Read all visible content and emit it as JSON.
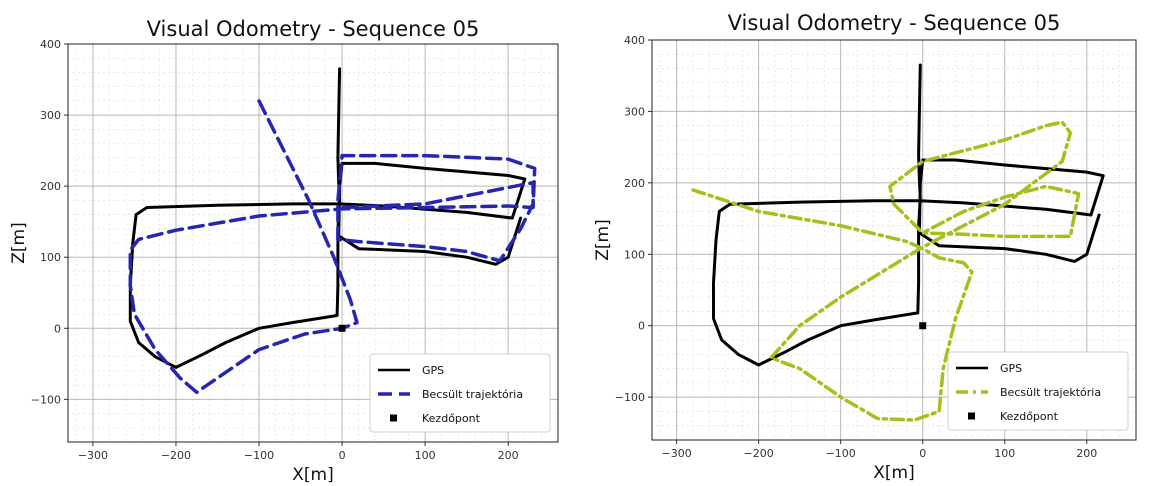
{
  "chart_data": [
    {
      "type": "line",
      "title": "Visual Odometry - Sequence 05",
      "xlabel": "X[m]",
      "ylabel": "Z[m]",
      "xlim": [
        -330,
        260
      ],
      "ylim": [
        -160,
        400
      ],
      "xticks": [
        -300,
        -200,
        -100,
        0,
        100,
        200
      ],
      "yticks": [
        -100,
        0,
        100,
        200,
        300,
        400
      ],
      "grid": true,
      "legend_position": "bottom-right",
      "series": [
        {
          "name": "GPS",
          "color": "#000000",
          "style": "solid",
          "points": [
            [
              -3,
              365
            ],
            [
              -4,
              300
            ],
            [
              -5,
              240
            ],
            [
              -4,
              205
            ],
            [
              -3,
              178
            ],
            [
              -5,
              140
            ],
            [
              -5,
              60
            ],
            [
              -6,
              18
            ],
            [
              -60,
              8
            ],
            [
              -100,
              0
            ],
            [
              -140,
              -20
            ],
            [
              -170,
              -38
            ],
            [
              -200,
              -55
            ],
            [
              -225,
              -40
            ],
            [
              -245,
              -20
            ],
            [
              -255,
              10
            ],
            [
              -255,
              60
            ],
            [
              -252,
              120
            ],
            [
              -248,
              160
            ],
            [
              -235,
              170
            ],
            [
              -150,
              173
            ],
            [
              -60,
              175
            ],
            [
              -3,
              175
            ],
            [
              50,
              172
            ],
            [
              150,
              163
            ],
            [
              205,
              155
            ],
            [
              220,
              210
            ],
            [
              200,
              215
            ],
            [
              100,
              225
            ],
            [
              40,
              232
            ],
            [
              0,
              232
            ],
            [
              -3,
              200
            ],
            [
              -4,
              130
            ],
            [
              20,
              112
            ],
            [
              100,
              108
            ],
            [
              150,
              100
            ],
            [
              185,
              90
            ],
            [
              200,
              100
            ],
            [
              215,
              155
            ]
          ]
        },
        {
          "name": "Becsült trajektória",
          "color": "#2626b0",
          "style": "dashed",
          "points": [
            [
              -100,
              320
            ],
            [
              -70,
              250
            ],
            [
              -40,
              180
            ],
            [
              -10,
              100
            ],
            [
              10,
              40
            ],
            [
              18,
              8
            ],
            [
              0,
              0
            ],
            [
              -45,
              -8
            ],
            [
              -100,
              -30
            ],
            [
              -150,
              -70
            ],
            [
              -175,
              -90
            ],
            [
              -195,
              -70
            ],
            [
              -225,
              -30
            ],
            [
              -250,
              20
            ],
            [
              -255,
              60
            ],
            [
              -255,
              110
            ],
            [
              -245,
              125
            ],
            [
              -200,
              138
            ],
            [
              -100,
              158
            ],
            [
              0,
              168
            ],
            [
              100,
              170
            ],
            [
              200,
              172
            ],
            [
              230,
              170
            ],
            [
              232,
              225
            ],
            [
              200,
              238
            ],
            [
              100,
              243
            ],
            [
              0,
              243
            ],
            [
              -5,
              180
            ],
            [
              -5,
              125
            ],
            [
              20,
              122
            ],
            [
              100,
              115
            ],
            [
              150,
              108
            ],
            [
              190,
              95
            ],
            [
              215,
              140
            ],
            [
              230,
              175
            ],
            [
              230,
              205
            ],
            [
              100,
              175
            ],
            [
              0,
              170
            ]
          ]
        }
      ],
      "markers": [
        {
          "name": "Kezdőpont",
          "color": "#000000",
          "x": 0,
          "y": 0
        }
      ]
    },
    {
      "type": "line",
      "title": "Visual Odometry - Sequence 05",
      "xlabel": "X[m]",
      "ylabel": "Z[m]",
      "xlim": [
        -330,
        260
      ],
      "ylim": [
        -160,
        400
      ],
      "xticks": [
        -300,
        -200,
        -100,
        0,
        100,
        200
      ],
      "yticks": [
        -100,
        0,
        100,
        200,
        300,
        400
      ],
      "grid": true,
      "legend_position": "bottom-right",
      "series": [
        {
          "name": "GPS",
          "color": "#000000",
          "style": "solid",
          "points": [
            [
              -3,
              365
            ],
            [
              -4,
              300
            ],
            [
              -5,
              240
            ],
            [
              -4,
              205
            ],
            [
              -3,
              178
            ],
            [
              -5,
              140
            ],
            [
              -5,
              60
            ],
            [
              -6,
              18
            ],
            [
              -60,
              8
            ],
            [
              -100,
              0
            ],
            [
              -140,
              -20
            ],
            [
              -170,
              -38
            ],
            [
              -200,
              -55
            ],
            [
              -225,
              -40
            ],
            [
              -245,
              -20
            ],
            [
              -255,
              10
            ],
            [
              -255,
              60
            ],
            [
              -252,
              120
            ],
            [
              -248,
              160
            ],
            [
              -235,
              170
            ],
            [
              -150,
              173
            ],
            [
              -60,
              175
            ],
            [
              -3,
              175
            ],
            [
              50,
              172
            ],
            [
              150,
              163
            ],
            [
              205,
              155
            ],
            [
              220,
              210
            ],
            [
              200,
              215
            ],
            [
              100,
              225
            ],
            [
              40,
              232
            ],
            [
              0,
              232
            ],
            [
              -3,
              200
            ],
            [
              -4,
              130
            ],
            [
              20,
              112
            ],
            [
              100,
              108
            ],
            [
              150,
              100
            ],
            [
              185,
              90
            ],
            [
              200,
              100
            ],
            [
              215,
              155
            ]
          ]
        },
        {
          "name": "Becsült trajektória",
          "color": "#a8be1c",
          "style": "dashdot",
          "points": [
            [
              -280,
              190
            ],
            [
              -200,
              160
            ],
            [
              -100,
              140
            ],
            [
              -20,
              118
            ],
            [
              0,
              108
            ],
            [
              20,
              95
            ],
            [
              50,
              88
            ],
            [
              60,
              75
            ],
            [
              40,
              10
            ],
            [
              25,
              -60
            ],
            [
              20,
              -120
            ],
            [
              -10,
              -132
            ],
            [
              -55,
              -130
            ],
            [
              -100,
              -100
            ],
            [
              -150,
              -60
            ],
            [
              -185,
              -45
            ],
            [
              -150,
              0
            ],
            [
              -100,
              40
            ],
            [
              -50,
              75
            ],
            [
              0,
              110
            ],
            [
              100,
              170
            ],
            [
              170,
              230
            ],
            [
              180,
              270
            ],
            [
              170,
              285
            ],
            [
              150,
              280
            ],
            [
              100,
              260
            ],
            [
              0,
              230
            ],
            [
              -40,
              195
            ],
            [
              -35,
              170
            ],
            [
              0,
              130
            ],
            [
              50,
              128
            ],
            [
              100,
              125
            ],
            [
              180,
              125
            ],
            [
              190,
              185
            ],
            [
              150,
              195
            ],
            [
              100,
              180
            ],
            [
              50,
              160
            ],
            [
              0,
              130
            ]
          ]
        }
      ],
      "markers": [
        {
          "name": "Kezdőpont",
          "color": "#000000",
          "x": 0,
          "y": 0
        }
      ]
    }
  ]
}
